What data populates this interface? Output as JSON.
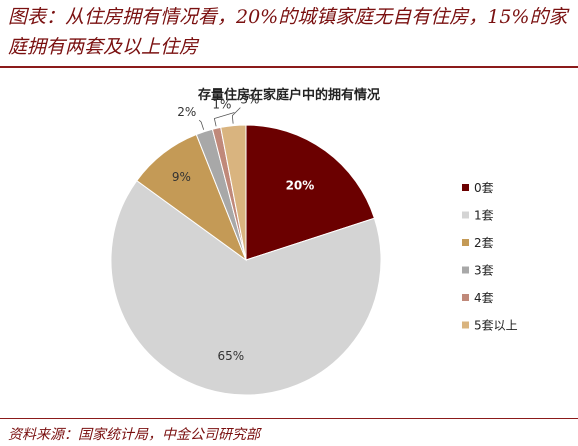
{
  "header": {
    "title": "图表：从住房拥有情况看，20%的城镇家庭无自有住房，15%的家庭拥有两套及以上住房"
  },
  "footer": {
    "source": "资料来源：国家统计局，中金公司研究部"
  },
  "chart_data": {
    "type": "pie",
    "title": "存量住房在家庭户中的拥有情况",
    "legend_position": "right",
    "slices": [
      {
        "label": "0套",
        "value": 20,
        "display": "20%",
        "color": "#6b0000",
        "label_color": "#ffffff"
      },
      {
        "label": "1套",
        "value": 65,
        "display": "65%",
        "color": "#d4d4d4",
        "label_color": "#333333"
      },
      {
        "label": "2套",
        "value": 9,
        "display": "9%",
        "color": "#c49a56",
        "label_color": "#333333"
      },
      {
        "label": "3套",
        "value": 2,
        "display": "2%",
        "color": "#a8a8a8",
        "label_color": "#333333"
      },
      {
        "label": "4套",
        "value": 1,
        "display": "1%",
        "color": "#c0897a",
        "label_color": "#333333"
      },
      {
        "label": "5套以上",
        "value": 3,
        "display": "3%",
        "color": "#d9b47f",
        "label_color": "#333333"
      }
    ]
  }
}
